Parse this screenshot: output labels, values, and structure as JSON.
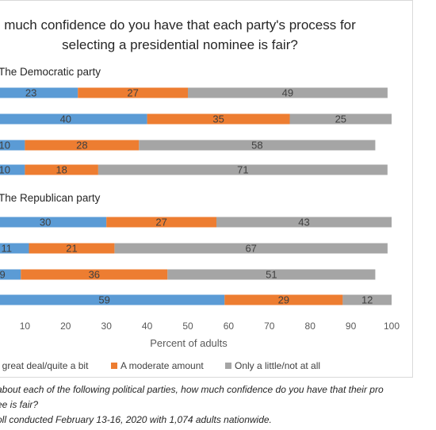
{
  "chart_data": {
    "type": "bar",
    "orientation": "horizontal",
    "stacked": true,
    "title_lines": [
      "much confidence do you have that each party's process for",
      "selecting a presidential nominee is fair?"
    ],
    "groups": [
      {
        "label": "The Democratic party",
        "rows": [
          [
            23,
            27,
            49
          ],
          [
            40,
            35,
            25
          ],
          [
            10,
            28,
            58
          ],
          [
            10,
            18,
            71
          ]
        ]
      },
      {
        "label": "The Republican party",
        "rows": [
          [
            30,
            27,
            43
          ],
          [
            11,
            21,
            67
          ],
          [
            9,
            36,
            51
          ],
          [
            59,
            29,
            12
          ]
        ]
      }
    ],
    "series": [
      {
        "name": "A great deal/quite a bit",
        "color": "#5b9bd5"
      },
      {
        "name": "A moderate amount",
        "color": "#ed7d31"
      },
      {
        "name": "Only a little/not at all",
        "color": "#a5a5a5"
      }
    ],
    "xlabel": "Percent of adults",
    "xlim": [
      0,
      100
    ],
    "xticks": [
      "10",
      "20",
      "30",
      "40",
      "50",
      "60",
      "70",
      "80",
      "90",
      "100"
    ],
    "legend_position": "bottom",
    "grid": false
  },
  "footnotes": [
    "about each of the following political parties, how much confidence do you have that their pro",
    "ee is fair?",
    "oll conducted February 13-16, 2020 with 1,074 adults nationwide."
  ]
}
